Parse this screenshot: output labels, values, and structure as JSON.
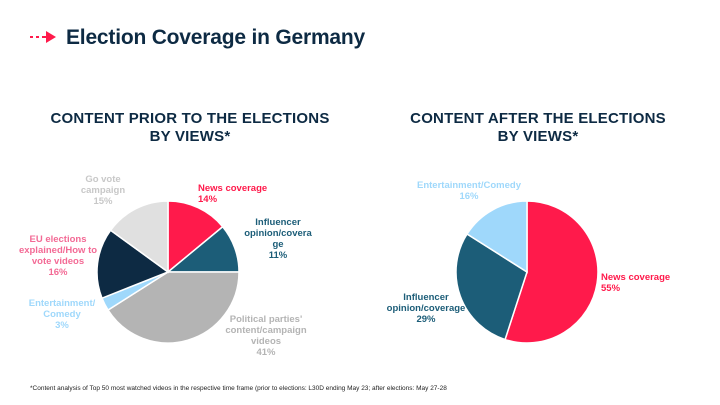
{
  "slide": {
    "title": "Election Coverage in Germany",
    "accent_color": "#ff1a4b",
    "title_color": "#0d2a43",
    "footnote": "*Content analysis of Top 50 most watched videos in the respective time frame (prior to elections: L30D ending May 23;  after elections: May 27-28"
  },
  "chart_data": [
    {
      "type": "pie",
      "title": "CONTENT PRIOR TO THE ELECTIONS BY VIEWS*",
      "title_lines": [
        "CONTENT PRIOR TO THE ELECTIONS",
        "BY VIEWS*"
      ],
      "start_angle_deg": 0,
      "direction": "clockwise",
      "slices": [
        {
          "label": "News coverage",
          "value": 14,
          "display": "14%",
          "color": "#ff1a4b",
          "label_lines": [
            "News coverage"
          ]
        },
        {
          "label": "Influencer opinion/coverage",
          "value": 11,
          "display": "11%",
          "color": "#1c5d78",
          "label_lines": [
            "Influencer",
            "opinion/covera",
            "ge"
          ]
        },
        {
          "label": "Political parties' content/campaign videos",
          "value": 41,
          "display": "41%",
          "color": "#b4b4b4",
          "label_lines": [
            "Political parties'",
            "content/campaign",
            "videos"
          ]
        },
        {
          "label": "Entertainment/ Comedy",
          "value": 3,
          "display": "3%",
          "color": "#9fd8fb",
          "label_lines": [
            "Entertainment/",
            "Comedy"
          ]
        },
        {
          "label": "EU elections explained/How to vote videos",
          "value": 16,
          "display": "16%",
          "color": "#0d2a43",
          "label_lines": [
            "EU elections",
            "explained/How to",
            "vote videos"
          ]
        },
        {
          "label": "Go vote campaign",
          "value": 15,
          "display": "15%",
          "color": "#e0e0e0",
          "label_lines": [
            "Go vote",
            "campaign"
          ]
        }
      ]
    },
    {
      "type": "pie",
      "title": "CONTENT AFTER THE ELECTIONS BY VIEWS*",
      "title_lines": [
        "CONTENT AFTER THE ELECTIONS",
        "BY VIEWS*"
      ],
      "start_angle_deg": 0,
      "direction": "clockwise",
      "slices": [
        {
          "label": "News coverage",
          "value": 55,
          "display": "55%",
          "color": "#ff1a4b",
          "label_lines": [
            "News coverage"
          ]
        },
        {
          "label": "Influencer opinion/coverage",
          "value": 29,
          "display": "29%",
          "color": "#1c5d78",
          "label_lines": [
            "Influencer",
            "opinion/coverage"
          ]
        },
        {
          "label": "Entertainment/Comedy",
          "value": 16,
          "display": "16%",
          "color": "#9fd8fb",
          "label_lines": [
            "Entertainment/Comedy"
          ]
        }
      ]
    }
  ]
}
